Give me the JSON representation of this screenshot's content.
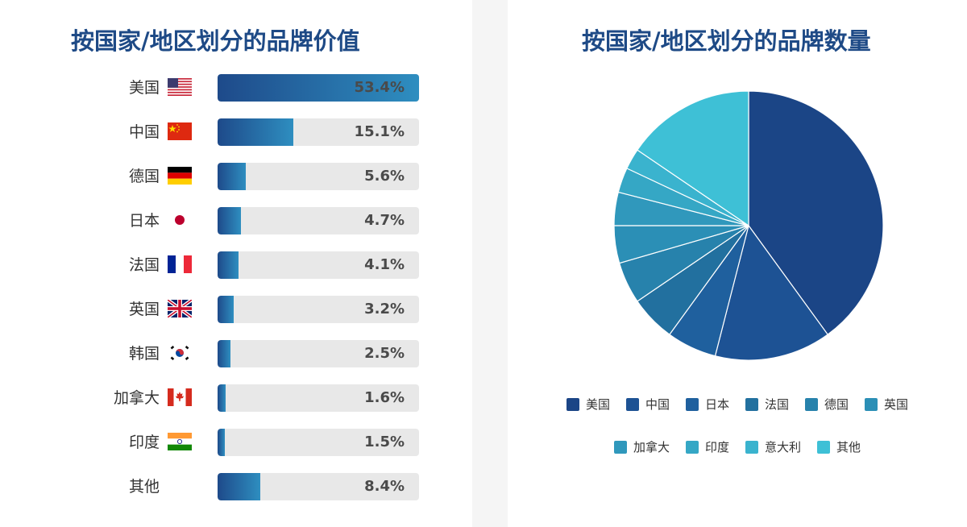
{
  "left": {
    "title": "按国家/地区划分的品牌价值",
    "rows": [
      {
        "label": "美国",
        "value": "53.4%",
        "flag": "us-flag-icon"
      },
      {
        "label": "中国",
        "value": "15.1%",
        "flag": "china-flag-icon"
      },
      {
        "label": "德国",
        "value": "5.6%",
        "flag": "germany-flag-icon"
      },
      {
        "label": "日本",
        "value": "4.7%",
        "flag": "japan-flag-icon"
      },
      {
        "label": "法国",
        "value": "4.1%",
        "flag": "france-flag-icon"
      },
      {
        "label": "英国",
        "value": "3.2%",
        "flag": "uk-flag-icon"
      },
      {
        "label": "韩国",
        "value": "2.5%",
        "flag": "korea-flag-icon"
      },
      {
        "label": "加拿大",
        "value": "1.6%",
        "flag": "canada-flag-icon"
      },
      {
        "label": "印度",
        "value": "1.5%",
        "flag": "india-flag-icon"
      },
      {
        "label": "其他",
        "value": "8.4%",
        "flag": ""
      }
    ]
  },
  "right": {
    "title": "按国家/地区划分的品牌数量",
    "legend_row1": [
      "美国",
      "中国",
      "日本",
      "法国",
      "德国",
      "英国"
    ],
    "legend_row2": [
      "加拿大",
      "印度",
      "意大利",
      "其他"
    ]
  },
  "chart_data": [
    {
      "type": "bar",
      "orientation": "horizontal",
      "title": "按国家/地区划分的品牌价值",
      "categories": [
        "美国",
        "中国",
        "德国",
        "日本",
        "法国",
        "英国",
        "韩国",
        "加拿大",
        "印度",
        "其他"
      ],
      "values": [
        53.4,
        15.1,
        5.6,
        4.7,
        4.1,
        3.2,
        2.5,
        1.6,
        1.5,
        8.4
      ],
      "unit": "%",
      "xlim": [
        0,
        100
      ]
    },
    {
      "type": "pie",
      "title": "按国家/地区划分的品牌数量",
      "categories": [
        "美国",
        "中国",
        "日本",
        "法国",
        "德国",
        "英国",
        "加拿大",
        "印度",
        "意大利",
        "其他"
      ],
      "values": [
        40,
        14,
        6,
        5.5,
        5,
        4.5,
        4,
        3,
        2.5,
        15.5
      ],
      "colors": [
        "#1b4586",
        "#1d5294",
        "#1f609e",
        "#22709f",
        "#2782ac",
        "#2b8fb6",
        "#3098bc",
        "#35a7c5",
        "#3ab3ce",
        "#3ec0d6"
      ],
      "legend": "bottom"
    }
  ]
}
